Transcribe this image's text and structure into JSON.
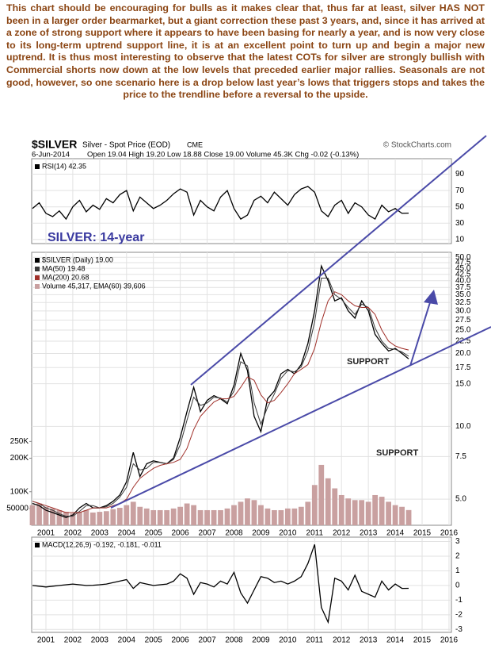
{
  "commentary": "This chart should be encouraging for bulls as it makes clear that, thus far at least, silver HAS NOT been in a larger order bearmarket, but a giant correction these past 3 years, and, since it has arrived at a zone of strong support where it appears to have been basing for nearly a year, and is now very close to its long-term uptrend support line, it is at an excellent point to turn up and begin a major new uptrend. It is thus most interesting to observe that the latest COTs for silver are strongly bullish with Commercial shorts now down at the low levels that preceded earlier major rallies. Seasonals are not good, however, so one scenario here is a drop below last year’s lows that triggers stops and takes the price to the trendline before a reversal to the upside.",
  "header": {
    "title": "$SILVER",
    "subtitle": "Silver - Spot Price (EOD)",
    "exchange": "CME",
    "source": "© StockCharts.com",
    "date": "6-Jun-2014",
    "quote": "Open 19.04   High 19.20   Low 18.88   Close 19.00   Volume 45.3K   Chg -0.02 (-0.13%)"
  },
  "chart_data": [
    {
      "type": "line",
      "x": [
        2000.5,
        2000.75,
        2001,
        2001.25,
        2001.5,
        2001.75,
        2002,
        2002.25,
        2002.5,
        2002.75,
        2003,
        2003.25,
        2003.5,
        2003.75,
        2004,
        2004.25,
        2004.5,
        2004.75,
        2005,
        2005.25,
        2005.5,
        2005.75,
        2006,
        2006.25,
        2006.5,
        2006.75,
        2007,
        2007.25,
        2007.5,
        2007.75,
        2008,
        2008.25,
        2008.5,
        2008.75,
        2009,
        2009.25,
        2009.5,
        2009.75,
        2010,
        2010.25,
        2010.5,
        2010.75,
        2011,
        2011.25,
        2011.5,
        2011.75,
        2012,
        2012.25,
        2012.5,
        2012.75,
        2013,
        2013.25,
        2013.5,
        2013.75,
        2014,
        2014.25,
        2014.5
      ],
      "series": [
        {
          "name": "RSI(14) 42.35",
          "color": "#000000",
          "values": [
            48,
            55,
            42,
            38,
            45,
            35,
            50,
            58,
            44,
            52,
            47,
            60,
            55,
            65,
            70,
            45,
            62,
            55,
            48,
            52,
            58,
            66,
            72,
            68,
            40,
            58,
            50,
            45,
            62,
            70,
            48,
            35,
            40,
            58,
            63,
            55,
            68,
            60,
            52,
            65,
            72,
            75,
            68,
            45,
            38,
            52,
            58,
            42,
            55,
            50,
            40,
            35,
            52,
            44,
            48,
            42,
            42.35
          ]
        }
      ],
      "xlim": [
        2000.47,
        2016.09
      ],
      "xticks": [
        2001,
        2002,
        2003,
        2004,
        2005,
        2006,
        2007,
        2008,
        2009,
        2010,
        2011,
        2012,
        2013,
        2014,
        2015,
        2016
      ],
      "ylim": [
        5,
        109
      ],
      "yticks": [
        10,
        30,
        50,
        70,
        90
      ],
      "grid": true
    },
    {
      "type": "line",
      "log_scale": true,
      "x": [
        2000.5,
        2000.75,
        2001,
        2001.25,
        2001.5,
        2001.75,
        2002,
        2002.25,
        2002.5,
        2002.75,
        2003,
        2003.25,
        2003.5,
        2003.75,
        2004,
        2004.25,
        2004.5,
        2004.75,
        2005,
        2005.25,
        2005.5,
        2005.75,
        2006,
        2006.25,
        2006.5,
        2006.75,
        2007,
        2007.25,
        2007.5,
        2007.75,
        2008,
        2008.25,
        2008.5,
        2008.75,
        2009,
        2009.25,
        2009.5,
        2009.75,
        2010,
        2010.25,
        2010.5,
        2010.75,
        2011,
        2011.25,
        2011.5,
        2011.75,
        2012,
        2012.25,
        2012.5,
        2012.75,
        2013,
        2013.25,
        2013.5,
        2013.75,
        2014,
        2014.25,
        2014.5
      ],
      "series": [
        {
          "name": "$SILVER (Daily) 19.00",
          "color": "#000000",
          "values": [
            4.8,
            4.7,
            4.5,
            4.4,
            4.3,
            4.2,
            4.3,
            4.6,
            4.8,
            4.6,
            4.6,
            4.7,
            4.9,
            5.2,
            5.9,
            7.8,
            6.2,
            7.0,
            7.2,
            7.1,
            7.0,
            7.4,
            9.0,
            11.5,
            14.5,
            11.5,
            12.8,
            13.4,
            13.0,
            12.4,
            14.8,
            20.0,
            17.0,
            11.0,
            9.5,
            13.0,
            14.0,
            16.5,
            17.2,
            16.5,
            18.0,
            22.0,
            30.0,
            46.0,
            40.0,
            33.0,
            34.0,
            30.0,
            28.0,
            33.0,
            30.0,
            24.0,
            22.0,
            20.5,
            21.0,
            20.0,
            19.0
          ]
        },
        {
          "name": "MA(50) 19.48",
          "color": "#3a3a3a",
          "values": [
            4.9,
            4.8,
            4.6,
            4.5,
            4.35,
            4.25,
            4.25,
            4.45,
            4.7,
            4.7,
            4.6,
            4.65,
            4.8,
            5.1,
            5.6,
            7.0,
            6.6,
            6.7,
            7.1,
            7.1,
            7.0,
            7.3,
            8.4,
            10.6,
            13.2,
            12.2,
            12.5,
            13.2,
            13.1,
            12.6,
            14.0,
            18.5,
            17.8,
            12.5,
            10.2,
            12.0,
            13.6,
            15.8,
            17.0,
            16.8,
            17.6,
            20.5,
            27.0,
            41.0,
            41.0,
            35.0,
            33.5,
            31.0,
            29.0,
            32.0,
            31.0,
            25.5,
            22.5,
            21.0,
            20.8,
            20.3,
            19.48
          ]
        },
        {
          "name": "MA(200) 20.68",
          "color": "#a0302a",
          "values": [
            4.9,
            4.8,
            4.7,
            4.6,
            4.5,
            4.4,
            4.4,
            4.4,
            4.5,
            4.6,
            4.6,
            4.6,
            4.7,
            4.8,
            5.0,
            5.6,
            6.1,
            6.4,
            6.7,
            6.9,
            7.0,
            7.1,
            7.3,
            8.1,
            9.7,
            11.0,
            11.8,
            12.6,
            13.0,
            13.0,
            13.3,
            14.5,
            16.0,
            15.5,
            13.5,
            12.5,
            12.8,
            13.8,
            15.0,
            16.5,
            17.2,
            18.0,
            21.0,
            27.0,
            33.0,
            36.0,
            35.0,
            33.0,
            31.5,
            31.0,
            31.0,
            29.0,
            25.0,
            22.5,
            21.5,
            21.0,
            20.68
          ]
        },
        {
          "name": "Volume 45,317, EMA(60) 39,606",
          "color": "#c9a0a0",
          "type": "bar",
          "axis": "y2",
          "values": [
            60000,
            65000,
            55000,
            50000,
            45000,
            40000,
            35000,
            40000,
            45000,
            38000,
            40000,
            42000,
            48000,
            52000,
            60000,
            70000,
            55000,
            50000,
            45000,
            45000,
            45000,
            50000,
            55000,
            65000,
            60000,
            45000,
            45000,
            45000,
            45000,
            50000,
            60000,
            70000,
            80000,
            75000,
            60000,
            50000,
            45000,
            45000,
            50000,
            50000,
            55000,
            70000,
            120000,
            180000,
            140000,
            110000,
            90000,
            80000,
            75000,
            75000,
            70000,
            90000,
            85000,
            70000,
            60000,
            55000,
            45317
          ]
        }
      ],
      "xlim": [
        2000.47,
        2016.09
      ],
      "xticks": [
        2001,
        2002,
        2003,
        2004,
        2005,
        2006,
        2007,
        2008,
        2009,
        2010,
        2011,
        2012,
        2013,
        2014,
        2015,
        2016
      ],
      "ylim": [
        3.9,
        52.4
      ],
      "yticks": [
        {
          "value": 5,
          "label": "5.0"
        },
        7.5,
        {
          "value": 10,
          "label": "10.0"
        },
        {
          "value": 15,
          "label": "15.0"
        },
        17.5,
        {
          "value": 20,
          "label": "20.0"
        },
        22.5,
        {
          "value": 25,
          "label": "25.0"
        },
        27.5,
        {
          "value": 30,
          "label": "30.0"
        },
        32.5,
        {
          "value": 35,
          "label": "35.0"
        },
        37.5,
        {
          "value": 40,
          "label": "40.0"
        },
        42.5,
        {
          "value": 45,
          "label": "45.0"
        },
        47.5,
        {
          "value": 50,
          "label": "50.0"
        }
      ],
      "y2lim": [
        0,
        814000
      ],
      "y2ticks": [
        50000,
        {
          "value": 100000,
          "label": "100K"
        },
        {
          "value": 200000,
          "label": "200K"
        },
        {
          "value": 250000,
          "label": "250K"
        }
      ],
      "grid": true,
      "annotations": [
        "SILVER: 14-year",
        "SUPPORT",
        "SUPPORT"
      ]
    },
    {
      "type": "line",
      "x": [
        2000.5,
        2000.75,
        2001,
        2001.25,
        2001.5,
        2001.75,
        2002,
        2002.25,
        2002.5,
        2002.75,
        2003,
        2003.25,
        2003.5,
        2003.75,
        2004,
        2004.25,
        2004.5,
        2004.75,
        2005,
        2005.25,
        2005.5,
        2005.75,
        2006,
        2006.25,
        2006.5,
        2006.75,
        2007,
        2007.25,
        2007.5,
        2007.75,
        2008,
        2008.25,
        2008.5,
        2008.75,
        2009,
        2009.25,
        2009.5,
        2009.75,
        2010,
        2010.25,
        2010.5,
        2010.75,
        2011,
        2011.25,
        2011.5,
        2011.75,
        2012,
        2012.25,
        2012.5,
        2012.75,
        2013,
        2013.25,
        2013.5,
        2013.75,
        2014,
        2014.25,
        2014.5
      ],
      "series": [
        {
          "name": "MACD(12,26,9) -0.192, -0.181, -0.011",
          "color": "#000000",
          "values": [
            0,
            -0.05,
            -0.1,
            -0.05,
            0,
            0.05,
            0.1,
            0.05,
            0,
            0.02,
            0.05,
            0.1,
            0.2,
            0.3,
            0.4,
            -0.2,
            0.2,
            0.1,
            0,
            0.05,
            0.1,
            0.3,
            0.8,
            0.5,
            -0.6,
            0.2,
            0.1,
            -0.1,
            0.3,
            0.1,
            0.9,
            -0.5,
            -1.2,
            -0.3,
            0.6,
            0.5,
            0.2,
            0.3,
            0.1,
            0.3,
            0.6,
            1.5,
            2.8,
            -1.5,
            -2.5,
            0.5,
            0.3,
            -0.3,
            0.7,
            -0.4,
            -0.6,
            -0.8,
            0.3,
            -0.3,
            0.1,
            -0.2,
            -0.192
          ]
        }
      ],
      "xlim": [
        2000.47,
        2016.09
      ],
      "xticks": [
        2001,
        2002,
        2003,
        2004,
        2005,
        2006,
        2007,
        2008,
        2009,
        2010,
        2011,
        2012,
        2013,
        2014,
        2015,
        2016
      ],
      "ylim": [
        -3.2,
        3.3
      ],
      "yticks": [
        -3,
        -2,
        -1,
        0,
        1,
        2,
        3
      ],
      "grid": true
    }
  ]
}
